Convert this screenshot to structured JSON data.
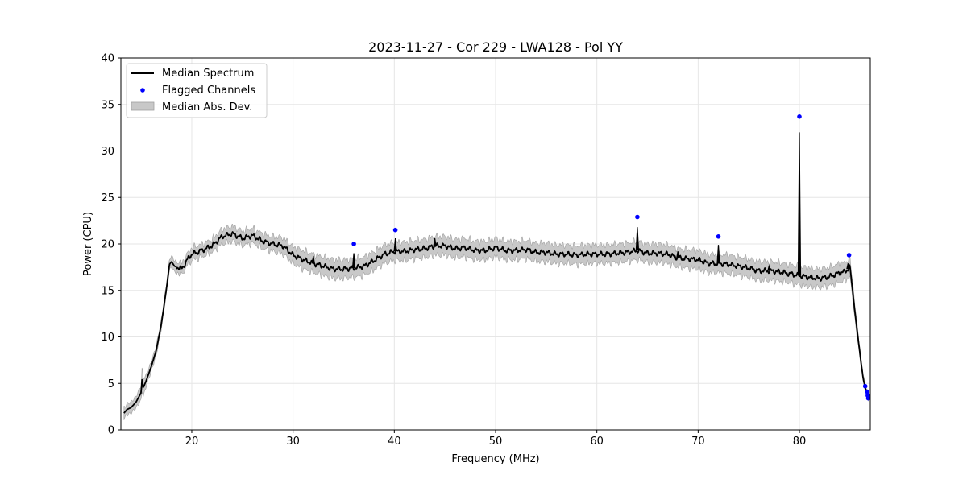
{
  "chart_data": {
    "type": "line",
    "title": "2023-11-27 - Cor 229 - LWA128 - Pol YY",
    "xlabel": "Frequency (MHz)",
    "ylabel": "Power (CPU)",
    "xlim": [
      13,
      87
    ],
    "ylim": [
      0,
      40
    ],
    "xticks": [
      20,
      30,
      40,
      50,
      60,
      70,
      80
    ],
    "yticks": [
      0,
      5,
      10,
      15,
      20,
      25,
      30,
      35,
      40
    ],
    "grid": true,
    "legend_position": "upper-left",
    "legend": [
      "Median Spectrum",
      "Flagged Channels",
      "Median Abs. Dev."
    ],
    "colors": {
      "median": "#000000",
      "flagged": "#0000ff",
      "mad": "#c8c8c8",
      "mad_edge": "#a0a0a0",
      "grid": "#e6e6e6"
    },
    "series": [
      {
        "name": "Median Spectrum",
        "x": [
          13.3,
          13.6,
          14.0,
          14.5,
          15.0,
          15.1,
          15.2,
          15.5,
          16.0,
          16.5,
          17.0,
          17.5,
          17.8,
          18.0,
          18.3,
          18.6,
          19.0,
          19.3,
          19.6,
          20.0,
          21.0,
          22.0,
          23.0,
          24.0,
          25.0,
          26.0,
          27.0,
          28.0,
          29.0,
          30.0,
          31.0,
          32.0,
          33.0,
          34.0,
          35.0,
          36.0,
          37.0,
          38.0,
          39.0,
          40.0,
          41.0,
          42.0,
          43.0,
          44.0,
          45.0,
          46.0,
          47.0,
          48.0,
          49.0,
          50.0,
          51.0,
          52.0,
          53.0,
          54.0,
          55.0,
          56.0,
          57.0,
          58.0,
          59.0,
          60.0,
          61.0,
          62.0,
          63.0,
          64.0,
          65.0,
          66.0,
          67.0,
          68.0,
          69.0,
          70.0,
          71.0,
          72.0,
          73.0,
          74.0,
          75.0,
          76.0,
          77.0,
          78.0,
          79.0,
          80.0,
          81.0,
          82.0,
          83.0,
          84.0,
          84.5,
          85.0,
          85.5,
          86.0,
          86.3,
          86.6,
          86.9
        ],
        "y": [
          1.8,
          2.2,
          2.4,
          3.0,
          4.0,
          5.6,
          4.5,
          5.3,
          6.8,
          8.6,
          11.4,
          15.2,
          17.8,
          18.1,
          17.6,
          17.5,
          17.3,
          17.8,
          18.4,
          18.9,
          19.3,
          19.8,
          20.8,
          21.1,
          20.6,
          20.9,
          20.3,
          20.0,
          19.8,
          18.8,
          18.3,
          17.9,
          17.6,
          17.3,
          17.3,
          17.4,
          17.6,
          18.2,
          18.9,
          19.2,
          19.2,
          19.4,
          19.5,
          19.8,
          19.8,
          19.5,
          19.6,
          19.3,
          19.3,
          19.6,
          19.3,
          19.3,
          19.4,
          19.1,
          19.1,
          18.9,
          18.9,
          18.8,
          18.9,
          18.9,
          18.9,
          19.0,
          19.1,
          19.3,
          19.0,
          19.0,
          18.9,
          18.5,
          18.4,
          18.3,
          17.9,
          17.9,
          17.8,
          17.6,
          17.4,
          17.1,
          17.1,
          17.0,
          16.8,
          16.6,
          16.4,
          16.3,
          16.5,
          16.9,
          17.0,
          17.5,
          12.5,
          8.0,
          5.5,
          4.2,
          3.3
        ]
      },
      {
        "name": "Median Abs. Dev.",
        "band": [
          0.6,
          0.6,
          0.6,
          0.6,
          0.8,
          1.2,
          1.0,
          0.6,
          0.5,
          0.5,
          0.5,
          0.5,
          0.6,
          0.6,
          0.6,
          0.6,
          0.6,
          0.6,
          0.6,
          0.7,
          0.7,
          0.7,
          0.8,
          0.8,
          0.8,
          0.8,
          0.8,
          0.8,
          0.9,
          0.9,
          1.0,
          1.0,
          1.0,
          1.0,
          1.0,
          1.0,
          1.0,
          1.0,
          1.0,
          1.0,
          1.0,
          1.0,
          1.0,
          1.0,
          1.0,
          1.0,
          1.0,
          1.0,
          1.0,
          1.0,
          1.0,
          1.0,
          1.0,
          1.0,
          1.0,
          1.0,
          1.0,
          1.0,
          1.0,
          1.0,
          1.0,
          1.0,
          1.0,
          1.0,
          1.0,
          1.0,
          1.0,
          1.0,
          1.0,
          1.0,
          1.0,
          1.0,
          1.0,
          1.0,
          1.0,
          1.0,
          1.0,
          1.0,
          1.0,
          1.0,
          1.0,
          1.0,
          1.0,
          1.0,
          1.0,
          1.0,
          0.8,
          0.5,
          0.4,
          0.3,
          0.3
        ]
      }
    ],
    "spikes": [
      {
        "x": 32.0,
        "y": 18.7
      },
      {
        "x": 36.0,
        "y": 19.0
      },
      {
        "x": 40.1,
        "y": 20.6
      },
      {
        "x": 44.0,
        "y": 20.6
      },
      {
        "x": 64.0,
        "y": 21.8
      },
      {
        "x": 68.0,
        "y": 19.2
      },
      {
        "x": 72.0,
        "y": 19.9
      },
      {
        "x": 77.0,
        "y": 17.6
      },
      {
        "x": 80.0,
        "y": 32.0
      },
      {
        "x": 84.8,
        "y": 17.9
      }
    ],
    "flagged": [
      {
        "x": 36.0,
        "y": 20.0
      },
      {
        "x": 40.1,
        "y": 21.5
      },
      {
        "x": 64.0,
        "y": 22.9
      },
      {
        "x": 72.0,
        "y": 20.8
      },
      {
        "x": 80.0,
        "y": 33.7
      },
      {
        "x": 84.9,
        "y": 18.8
      },
      {
        "x": 86.5,
        "y": 4.7
      },
      {
        "x": 86.7,
        "y": 4.1
      },
      {
        "x": 86.75,
        "y": 3.7
      },
      {
        "x": 86.8,
        "y": 3.4
      }
    ]
  }
}
